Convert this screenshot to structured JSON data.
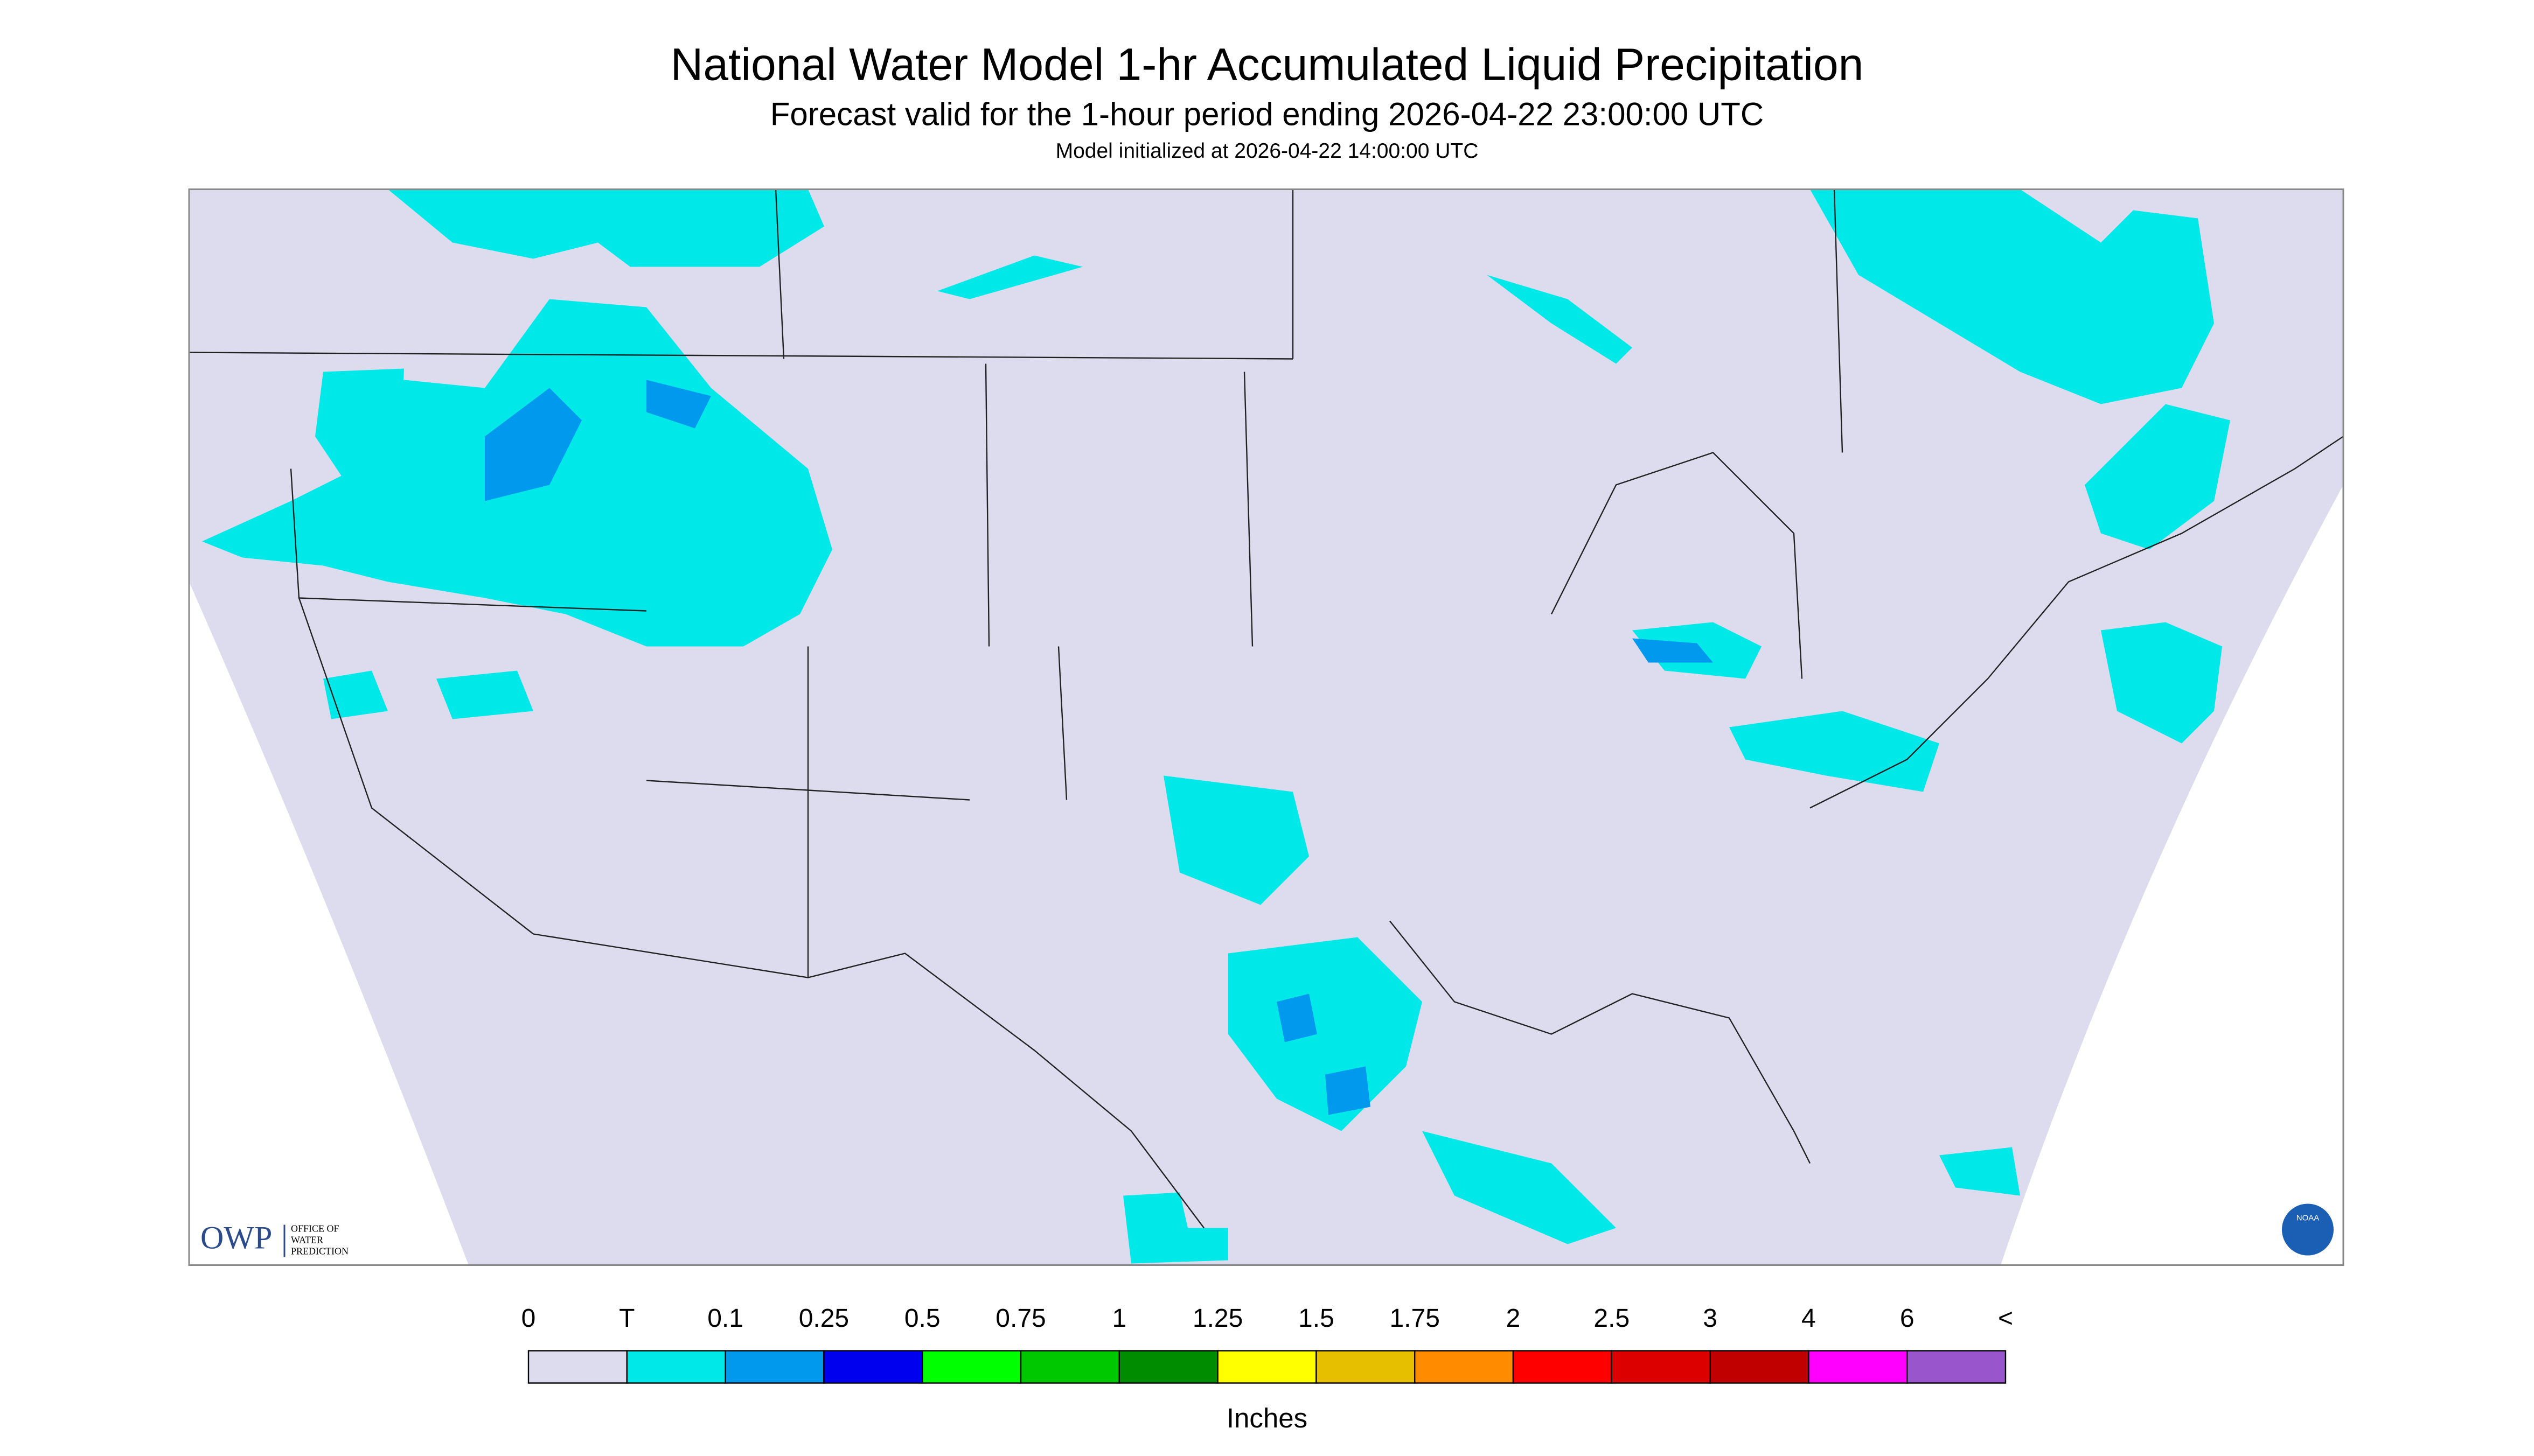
{
  "title": "National Water Model 1-hr Accumulated Liquid Precipitation",
  "subtitle": "Forecast valid for the 1-hour period ending 2026-04-22 23:00:00 UTC",
  "init_line": "Model initialized at 2026-04-22 14:00:00 UTC",
  "legend": {
    "labels": [
      "0",
      "T",
      "0.1",
      "0.25",
      "0.5",
      "0.75",
      "1",
      "1.25",
      "1.5",
      "1.75",
      "2",
      "2.5",
      "3",
      "4",
      "6",
      "<"
    ],
    "colors": [
      "#dcdcee",
      "#00e8e8",
      "#0099ee",
      "#0000ee",
      "#00ff00",
      "#00c800",
      "#008c00",
      "#ffff00",
      "#e6c000",
      "#ff8c00",
      "#ff0000",
      "#dd0000",
      "#c00000",
      "#ff00ff",
      "#9955cc"
    ],
    "unit": "Inches"
  },
  "logo": {
    "acronym": "OWP",
    "line1": "OFFICE OF",
    "line2": "WATER",
    "line3": "PREDICTION",
    "noaa": "NOAA"
  }
}
